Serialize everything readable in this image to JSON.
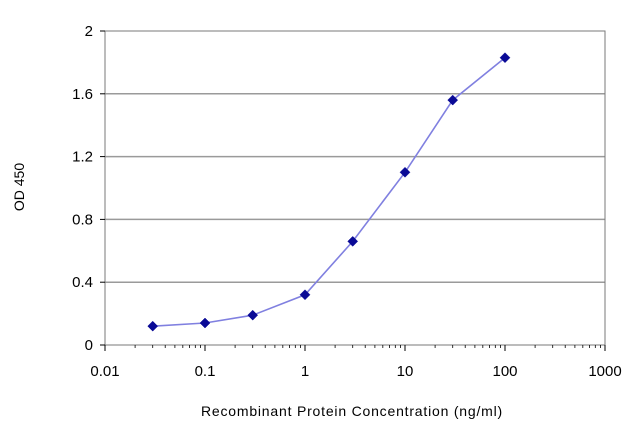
{
  "chart_data": {
    "type": "line",
    "title": "",
    "xlabel": "Recombinant Protein Concentration (ng/ml)",
    "ylabel": "OD 450",
    "xscale": "log",
    "xlim": [
      0.01,
      1000
    ],
    "ylim": [
      0,
      2
    ],
    "xticks": [
      0.01,
      0.1,
      1,
      10,
      100,
      1000
    ],
    "xtick_labels": [
      "0.01",
      "0.1",
      "1",
      "10",
      "100",
      "1000"
    ],
    "yticks": [
      0,
      0.4,
      0.8,
      1.2,
      1.6,
      2
    ],
    "ytick_labels": [
      "0",
      "0.4",
      "0.8",
      "1.2",
      "1.6",
      "2"
    ],
    "grid": "horizontal",
    "legend": "none",
    "series": [
      {
        "x": [
          0.03,
          0.1,
          0.3,
          1,
          3,
          10,
          30,
          100
        ],
        "y": [
          0.12,
          0.14,
          0.19,
          0.32,
          0.66,
          1.1,
          1.56,
          1.83
        ],
        "color": "#8080e0",
        "marker_color": "#0a0a96"
      }
    ],
    "plot_background": "#ffffff",
    "grid_color": "#9a9a9a"
  }
}
